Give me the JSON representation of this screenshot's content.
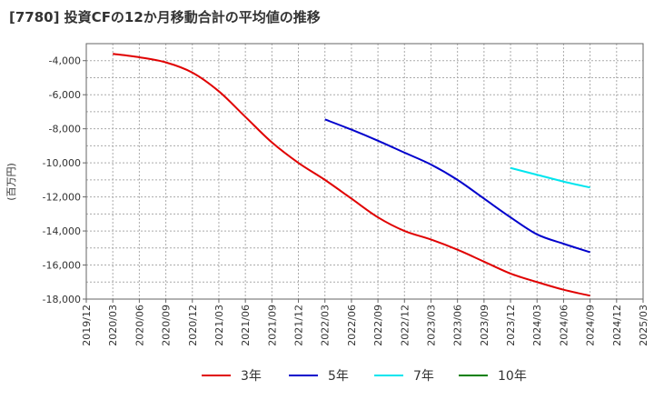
{
  "chart_data": {
    "type": "line",
    "title": "[7780]  投資CFの12か月移動合計の平均値の推移",
    "ylabel": "(百万円)",
    "xlabel": "",
    "x": [
      "2019/12",
      "2020/03",
      "2020/06",
      "2020/09",
      "2020/12",
      "2021/03",
      "2021/06",
      "2021/09",
      "2021/12",
      "2022/03",
      "2022/06",
      "2022/09",
      "2022/12",
      "2023/03",
      "2023/06",
      "2023/09",
      "2023/12",
      "2024/03",
      "2024/06",
      "2024/09",
      "2024/12",
      "2025/03"
    ],
    "ylim": [
      -18000,
      -3000
    ],
    "yticks": [
      -4000,
      -6000,
      -8000,
      -10000,
      -12000,
      -14000,
      -16000,
      -18000
    ],
    "ytick_labels": [
      "-4,000",
      "-6,000",
      "-8,000",
      "-10,000",
      "-12,000",
      "-14,000",
      "-16,000",
      "-18,000"
    ],
    "grid": true,
    "legend_position": "bottom",
    "series": [
      {
        "name": "3年",
        "color": "#e00000",
        "points": [
          [
            "2020/03",
            -3600
          ],
          [
            "2020/06",
            -3800
          ],
          [
            "2020/09",
            -4100
          ],
          [
            "2020/12",
            -4700
          ],
          [
            "2021/03",
            -5800
          ],
          [
            "2021/06",
            -7300
          ],
          [
            "2021/09",
            -8800
          ],
          [
            "2021/12",
            -10000
          ],
          [
            "2022/03",
            -11000
          ],
          [
            "2022/06",
            -12100
          ],
          [
            "2022/09",
            -13200
          ],
          [
            "2022/12",
            -14000
          ],
          [
            "2023/03",
            -14500
          ],
          [
            "2023/06",
            -15100
          ],
          [
            "2023/09",
            -15800
          ],
          [
            "2023/12",
            -16500
          ],
          [
            "2024/03",
            -17000
          ],
          [
            "2024/06",
            -17450
          ],
          [
            "2024/09",
            -17800
          ]
        ]
      },
      {
        "name": "5年",
        "color": "#0000cc",
        "points": [
          [
            "2022/03",
            -7450
          ],
          [
            "2022/06",
            -8050
          ],
          [
            "2022/09",
            -8700
          ],
          [
            "2022/12",
            -9400
          ],
          [
            "2023/03",
            -10100
          ],
          [
            "2023/06",
            -11000
          ],
          [
            "2023/09",
            -12100
          ],
          [
            "2023/12",
            -13200
          ],
          [
            "2024/03",
            -14200
          ],
          [
            "2024/06",
            -14750
          ],
          [
            "2024/09",
            -15250
          ]
        ]
      },
      {
        "name": "7年",
        "color": "#00e5ee",
        "points": [
          [
            "2023/12",
            -10300
          ],
          [
            "2024/03",
            -10700
          ],
          [
            "2024/06",
            -11100
          ],
          [
            "2024/09",
            -11450
          ]
        ]
      },
      {
        "name": "10年",
        "color": "#008000",
        "points": []
      }
    ]
  }
}
